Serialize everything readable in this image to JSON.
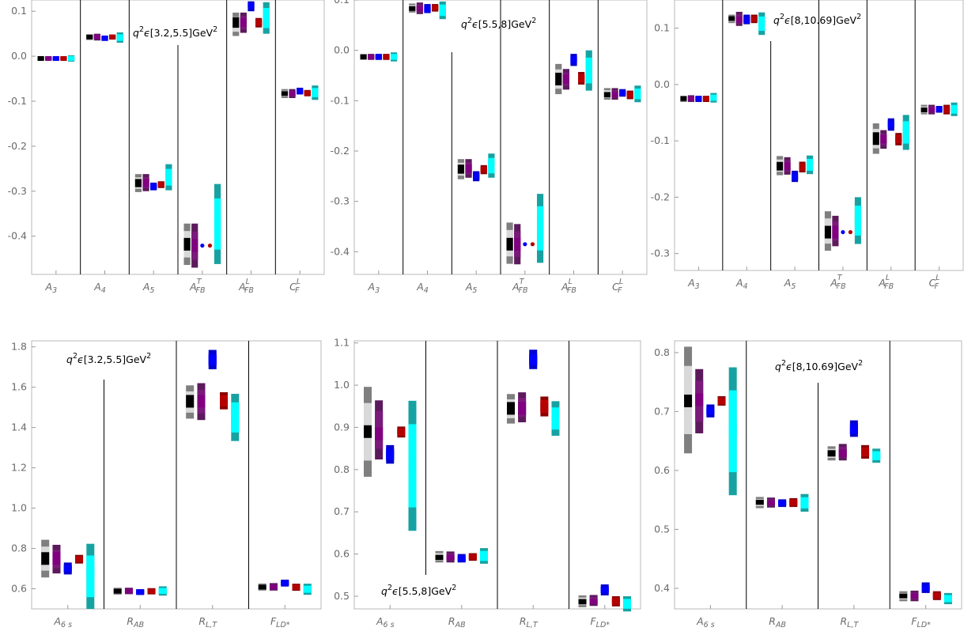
{
  "chart_data": [
    {
      "type": "floating-bar",
      "annotation": {
        "q": "q",
        "sup": "2",
        "eps": "ϵ",
        "range": "[3.2,5.5]",
        "unit": "GeV",
        "unit_sup": "2"
      },
      "categories": [
        {
          "main": "A",
          "sub": "3"
        },
        {
          "main": "A",
          "sub": "4"
        },
        {
          "main": "A",
          "sub": "5"
        },
        {
          "main": "A",
          "sub": "FB",
          "sup": "T"
        },
        {
          "main": "A",
          "sub": "FB",
          "sup": "L"
        },
        {
          "main": "C",
          "sub": "F",
          "sup": "L"
        }
      ],
      "yticks": [
        "0.1",
        "0.0",
        "-0.1",
        "-0.2",
        "-0.3",
        "-0.4"
      ],
      "ylim": [
        -0.485,
        0.125
      ],
      "groups": [
        [
          [
            -0.009,
            -0.001,
            -0.005
          ],
          [
            -0.009,
            -0.001,
            -0.005
          ],
          [
            -0.009,
            -0.001,
            -0.005
          ],
          [
            -0.009,
            -0.001,
            -0.005
          ],
          [
            -0.012,
            0.002,
            -0.005
          ]
        ],
        [
          [
            0.036,
            0.048,
            0.043
          ],
          [
            0.035,
            0.05,
            0.043
          ],
          [
            0.034,
            0.046,
            0.04
          ],
          [
            0.037,
            0.048,
            0.043
          ],
          [
            0.03,
            0.053,
            0.043
          ]
        ],
        [
          [
            -0.302,
            -0.262,
            -0.282
          ],
          [
            -0.3,
            -0.262,
            -0.282
          ],
          [
            -0.298,
            -0.281,
            -0.29
          ],
          [
            -0.293,
            -0.278,
            -0.285
          ],
          [
            -0.298,
            -0.24,
            -0.269
          ]
        ],
        [
          [
            -0.464,
            -0.372,
            -0.418
          ],
          [
            -0.47,
            -0.372,
            -0.421
          ],
          [
            -0.421,
            -0.421,
            -0.421
          ],
          [
            -0.421,
            -0.421,
            -0.421
          ],
          [
            -0.462,
            -0.284,
            -0.373
          ]
        ],
        [
          [
            0.045,
            0.097,
            0.075
          ],
          [
            0.052,
            0.097,
            0.075
          ],
          [
            0.1,
            0.122,
            0.113
          ],
          [
            0.064,
            0.085,
            0.074
          ],
          [
            0.05,
            0.12,
            0.085
          ]
        ],
        [
          [
            -0.093,
            -0.073,
            -0.083
          ],
          [
            -0.093,
            -0.073,
            -0.083
          ],
          [
            -0.085,
            -0.07,
            -0.078
          ],
          [
            -0.089,
            -0.075,
            -0.082
          ],
          [
            -0.097,
            -0.065,
            -0.081
          ]
        ]
      ]
    },
    {
      "type": "floating-bar",
      "annotation": {
        "q": "q",
        "sup": "2",
        "eps": "ϵ",
        "range": "[5.5,8]",
        "unit": "GeV",
        "unit_sup": "2"
      },
      "categories": [
        {
          "main": "A",
          "sub": "3"
        },
        {
          "main": "A",
          "sub": "4"
        },
        {
          "main": "A",
          "sub": "5"
        },
        {
          "main": "A",
          "sub": "FB",
          "sup": "T"
        },
        {
          "main": "A",
          "sub": "FB",
          "sup": "L"
        },
        {
          "main": "C",
          "sub": "F",
          "sup": "L"
        }
      ],
      "yticks": [
        "0.1",
        "0.0",
        "-0.1",
        "-0.2",
        "-0.3",
        "-0.4"
      ],
      "ylim": [
        -0.445,
        0.1
      ],
      "groups": [
        [
          [
            -0.019,
            -0.007,
            -0.013
          ],
          [
            -0.019,
            -0.007,
            -0.013
          ],
          [
            -0.019,
            -0.007,
            -0.013
          ],
          [
            -0.019,
            -0.007,
            -0.013
          ],
          [
            -0.022,
            -0.004,
            -0.013
          ]
        ],
        [
          [
            0.075,
            0.093,
            0.083
          ],
          [
            0.072,
            0.095,
            0.083
          ],
          [
            0.074,
            0.092,
            0.08
          ],
          [
            0.077,
            0.092,
            0.085
          ],
          [
            0.062,
            0.097,
            0.083
          ]
        ],
        [
          [
            -0.256,
            -0.216,
            -0.236
          ],
          [
            -0.253,
            -0.216,
            -0.235
          ],
          [
            -0.26,
            -0.24,
            -0.25
          ],
          [
            -0.246,
            -0.228,
            -0.237
          ],
          [
            -0.253,
            -0.205,
            -0.225
          ]
        ],
        [
          [
            -0.424,
            -0.342,
            -0.385
          ],
          [
            -0.425,
            -0.345,
            -0.385
          ],
          [
            -0.385,
            -0.385,
            -0.385
          ],
          [
            -0.385,
            -0.385,
            -0.385
          ],
          [
            -0.422,
            -0.285,
            -0.353
          ]
        ],
        [
          [
            -0.087,
            -0.027,
            -0.057
          ],
          [
            -0.078,
            -0.037,
            -0.057
          ],
          [
            -0.031,
            -0.007,
            -0.018
          ],
          [
            -0.068,
            -0.043,
            -0.055
          ],
          [
            -0.08,
            0.0,
            -0.04
          ]
        ],
        [
          [
            -0.098,
            -0.075,
            -0.088
          ],
          [
            -0.098,
            -0.075,
            -0.088
          ],
          [
            -0.092,
            -0.077,
            -0.085
          ],
          [
            -0.097,
            -0.08,
            -0.088
          ],
          [
            -0.103,
            -0.07,
            -0.088
          ]
        ]
      ]
    },
    {
      "type": "floating-bar",
      "annotation": {
        "q": "q",
        "sup": "2",
        "eps": "ϵ",
        "range": "[8,10.69]",
        "unit": "GeV",
        "unit_sup": "2"
      },
      "categories": [
        {
          "main": "A",
          "sub": "3"
        },
        {
          "main": "A",
          "sub": "4"
        },
        {
          "main": "A",
          "sub": "5"
        },
        {
          "main": "A",
          "sub": "FB",
          "sup": "T"
        },
        {
          "main": "A",
          "sub": "FB",
          "sup": "L"
        },
        {
          "main": "C",
          "sub": "F",
          "sup": "L"
        }
      ],
      "yticks": [
        "0.1",
        "0.0",
        "-0.1",
        "-0.2",
        "-0.3"
      ],
      "ylim": [
        -0.33,
        0.15
      ],
      "groups": [
        [
          [
            -0.031,
            -0.02,
            -0.025
          ],
          [
            -0.031,
            -0.019,
            -0.025
          ],
          [
            -0.031,
            -0.02,
            -0.025
          ],
          [
            -0.031,
            -0.02,
            -0.025
          ],
          [
            -0.032,
            -0.015,
            -0.024
          ]
        ],
        [
          [
            0.109,
            0.124,
            0.117
          ],
          [
            0.104,
            0.129,
            0.115
          ],
          [
            0.107,
            0.124,
            0.113
          ],
          [
            0.109,
            0.124,
            0.117
          ],
          [
            0.088,
            0.128,
            0.109
          ]
        ],
        [
          [
            -0.161,
            -0.127,
            -0.145
          ],
          [
            -0.16,
            -0.129,
            -0.145
          ],
          [
            -0.173,
            -0.153,
            -0.165
          ],
          [
            -0.156,
            -0.137,
            -0.146
          ],
          [
            -0.159,
            -0.126,
            -0.143
          ]
        ],
        [
          [
            -0.295,
            -0.225,
            -0.262
          ],
          [
            -0.287,
            -0.233,
            -0.262
          ],
          [
            -0.262,
            -0.262,
            -0.262
          ],
          [
            -0.262,
            -0.262,
            -0.262
          ],
          [
            -0.283,
            -0.2,
            -0.242
          ]
        ],
        [
          [
            -0.123,
            -0.069,
            -0.096
          ],
          [
            -0.114,
            -0.081,
            -0.097
          ],
          [
            -0.082,
            -0.06,
            -0.07
          ],
          [
            -0.108,
            -0.086,
            -0.097
          ],
          [
            -0.116,
            -0.054,
            -0.085
          ]
        ],
        [
          [
            -0.053,
            -0.036,
            -0.045
          ],
          [
            -0.053,
            -0.036,
            -0.045
          ],
          [
            -0.05,
            -0.038,
            -0.044
          ],
          [
            -0.053,
            -0.036,
            -0.044
          ],
          [
            -0.056,
            -0.032,
            -0.045
          ]
        ]
      ]
    },
    {
      "type": "floating-bar",
      "annotation": {
        "q": "q",
        "sup": "2",
        "eps": "ϵ",
        "range": "[3.2,5.5]",
        "unit": "GeV",
        "unit_sup": "2"
      },
      "categories": [
        {
          "main": "A",
          "sub": "6 s"
        },
        {
          "main": "R",
          "sub": "AB"
        },
        {
          "main": "R",
          "sub": "L,T"
        },
        {
          "main": "F",
          "sub": "LD*"
        }
      ],
      "yticks": [
        "1.8",
        "1.6",
        "1.4",
        "1.2",
        "1.0",
        "0.8",
        "0.6"
      ],
      "ylim": [
        0.5,
        1.83
      ],
      "groups": [
        [
          [
            0.656,
            0.843,
            0.75
          ],
          [
            0.676,
            0.818,
            0.75
          ],
          [
            0.671,
            0.73,
            0.7
          ],
          [
            0.725,
            0.768,
            0.745
          ],
          [
            0.5,
            0.823,
            0.68
          ]
        ],
        [
          [
            0.571,
            0.605,
            0.588
          ],
          [
            0.573,
            0.605,
            0.588
          ],
          [
            0.569,
            0.598,
            0.584
          ],
          [
            0.572,
            0.603,
            0.588
          ],
          [
            0.566,
            0.612,
            0.59
          ]
        ],
        [
          [
            1.444,
            1.609,
            1.53
          ],
          [
            1.437,
            1.62,
            1.53
          ],
          [
            1.689,
            1.785,
            1.735
          ],
          [
            1.49,
            1.575,
            1.53
          ],
          [
            1.333,
            1.567,
            1.45
          ]
        ],
        [
          [
            0.591,
            0.626,
            0.608
          ],
          [
            0.591,
            0.628,
            0.608
          ],
          [
            0.611,
            0.645,
            0.63
          ],
          [
            0.59,
            0.625,
            0.608
          ],
          [
            0.57,
            0.625,
            0.598
          ]
        ]
      ]
    },
    {
      "type": "floating-bar",
      "annotation": {
        "q": "q",
        "sup": "2",
        "eps": "ϵ",
        "range": "[5.5,8]",
        "unit": "GeV",
        "unit_sup": "2"
      },
      "categories": [
        {
          "main": "A",
          "sub": "6 s"
        },
        {
          "main": "R",
          "sub": "AB"
        },
        {
          "main": "R",
          "sub": "L,T"
        },
        {
          "main": "F",
          "sub": "LD*"
        }
      ],
      "yticks": [
        "1.1",
        "1.0",
        "0.9",
        "0.8",
        "0.7",
        "0.6",
        "0.5"
      ],
      "ylim": [
        0.47,
        1.105
      ],
      "groups": [
        [
          [
            0.783,
            0.996,
            0.89
          ],
          [
            0.824,
            0.964,
            0.885
          ],
          [
            0.814,
            0.858,
            0.835
          ],
          [
            0.876,
            0.902,
            0.89
          ],
          [
            0.655,
            0.963,
            0.81
          ]
        ],
        [
          [
            0.58,
            0.607,
            0.592
          ],
          [
            0.58,
            0.606,
            0.592
          ],
          [
            0.58,
            0.6,
            0.588
          ],
          [
            0.584,
            0.602,
            0.593
          ],
          [
            0.577,
            0.614,
            0.594
          ]
        ],
        [
          [
            0.909,
            0.979,
            0.945
          ],
          [
            0.912,
            0.983,
            0.945
          ],
          [
            1.038,
            1.084,
            1.06
          ],
          [
            0.926,
            0.973,
            0.948
          ],
          [
            0.88,
            0.962,
            0.92
          ]
        ],
        [
          [
            0.474,
            0.502,
            0.487
          ],
          [
            0.477,
            0.503,
            0.487
          ],
          [
            0.502,
            0.528,
            0.515
          ],
          [
            0.476,
            0.5,
            0.488
          ],
          [
            0.464,
            0.5,
            0.482
          ]
        ]
      ]
    },
    {
      "type": "floating-bar",
      "annotation": {
        "q": "q",
        "sup": "2",
        "eps": "ϵ",
        "range": "[8,10.69]",
        "unit": "GeV",
        "unit_sup": "2"
      },
      "categories": [
        {
          "main": "A",
          "sub": "6 s"
        },
        {
          "main": "R",
          "sub": "AB"
        },
        {
          "main": "R",
          "sub": "L,T"
        },
        {
          "main": "F",
          "sub": "LD*"
        }
      ],
      "yticks": [
        "0.8",
        "0.7",
        "0.6",
        "0.5",
        "0.4"
      ],
      "ylim": [
        0.365,
        0.82
      ],
      "groups": [
        [
          [
            0.629,
            0.81,
            0.718
          ],
          [
            0.663,
            0.772,
            0.72
          ],
          [
            0.69,
            0.712,
            0.7
          ],
          [
            0.71,
            0.726,
            0.718
          ],
          [
            0.558,
            0.775,
            0.67
          ]
        ],
        [
          [
            0.536,
            0.555,
            0.546
          ],
          [
            0.537,
            0.554,
            0.545
          ],
          [
            0.538,
            0.551,
            0.545
          ],
          [
            0.538,
            0.553,
            0.545
          ],
          [
            0.53,
            0.56,
            0.546
          ]
        ],
        [
          [
            0.617,
            0.641,
            0.629
          ],
          [
            0.617,
            0.645,
            0.629
          ],
          [
            0.657,
            0.685,
            0.668
          ],
          [
            0.62,
            0.643,
            0.631
          ],
          [
            0.613,
            0.637,
            0.625
          ]
        ],
        [
          [
            0.378,
            0.395,
            0.387
          ],
          [
            0.378,
            0.396,
            0.387
          ],
          [
            0.392,
            0.41,
            0.4
          ],
          [
            0.38,
            0.395,
            0.388
          ],
          [
            0.373,
            0.392,
            0.384
          ]
        ]
      ]
    }
  ],
  "series_colors": [
    {
      "outer": "#7f7f7f",
      "mid": "#d9d9d9",
      "inner": "#000000"
    },
    {
      "outer": "#5c1a5c",
      "mid": "#7a1a7a",
      "inner": "#800080"
    },
    {
      "outer": "#0000cc",
      "mid": "#0000ee",
      "inner": "#0000ff"
    },
    {
      "outer": "#8b0000",
      "mid": "#c00000",
      "inner": "#b30000"
    },
    {
      "outer": "#17a2a2",
      "mid": "#00ffff",
      "inner": "#00ffff"
    }
  ]
}
